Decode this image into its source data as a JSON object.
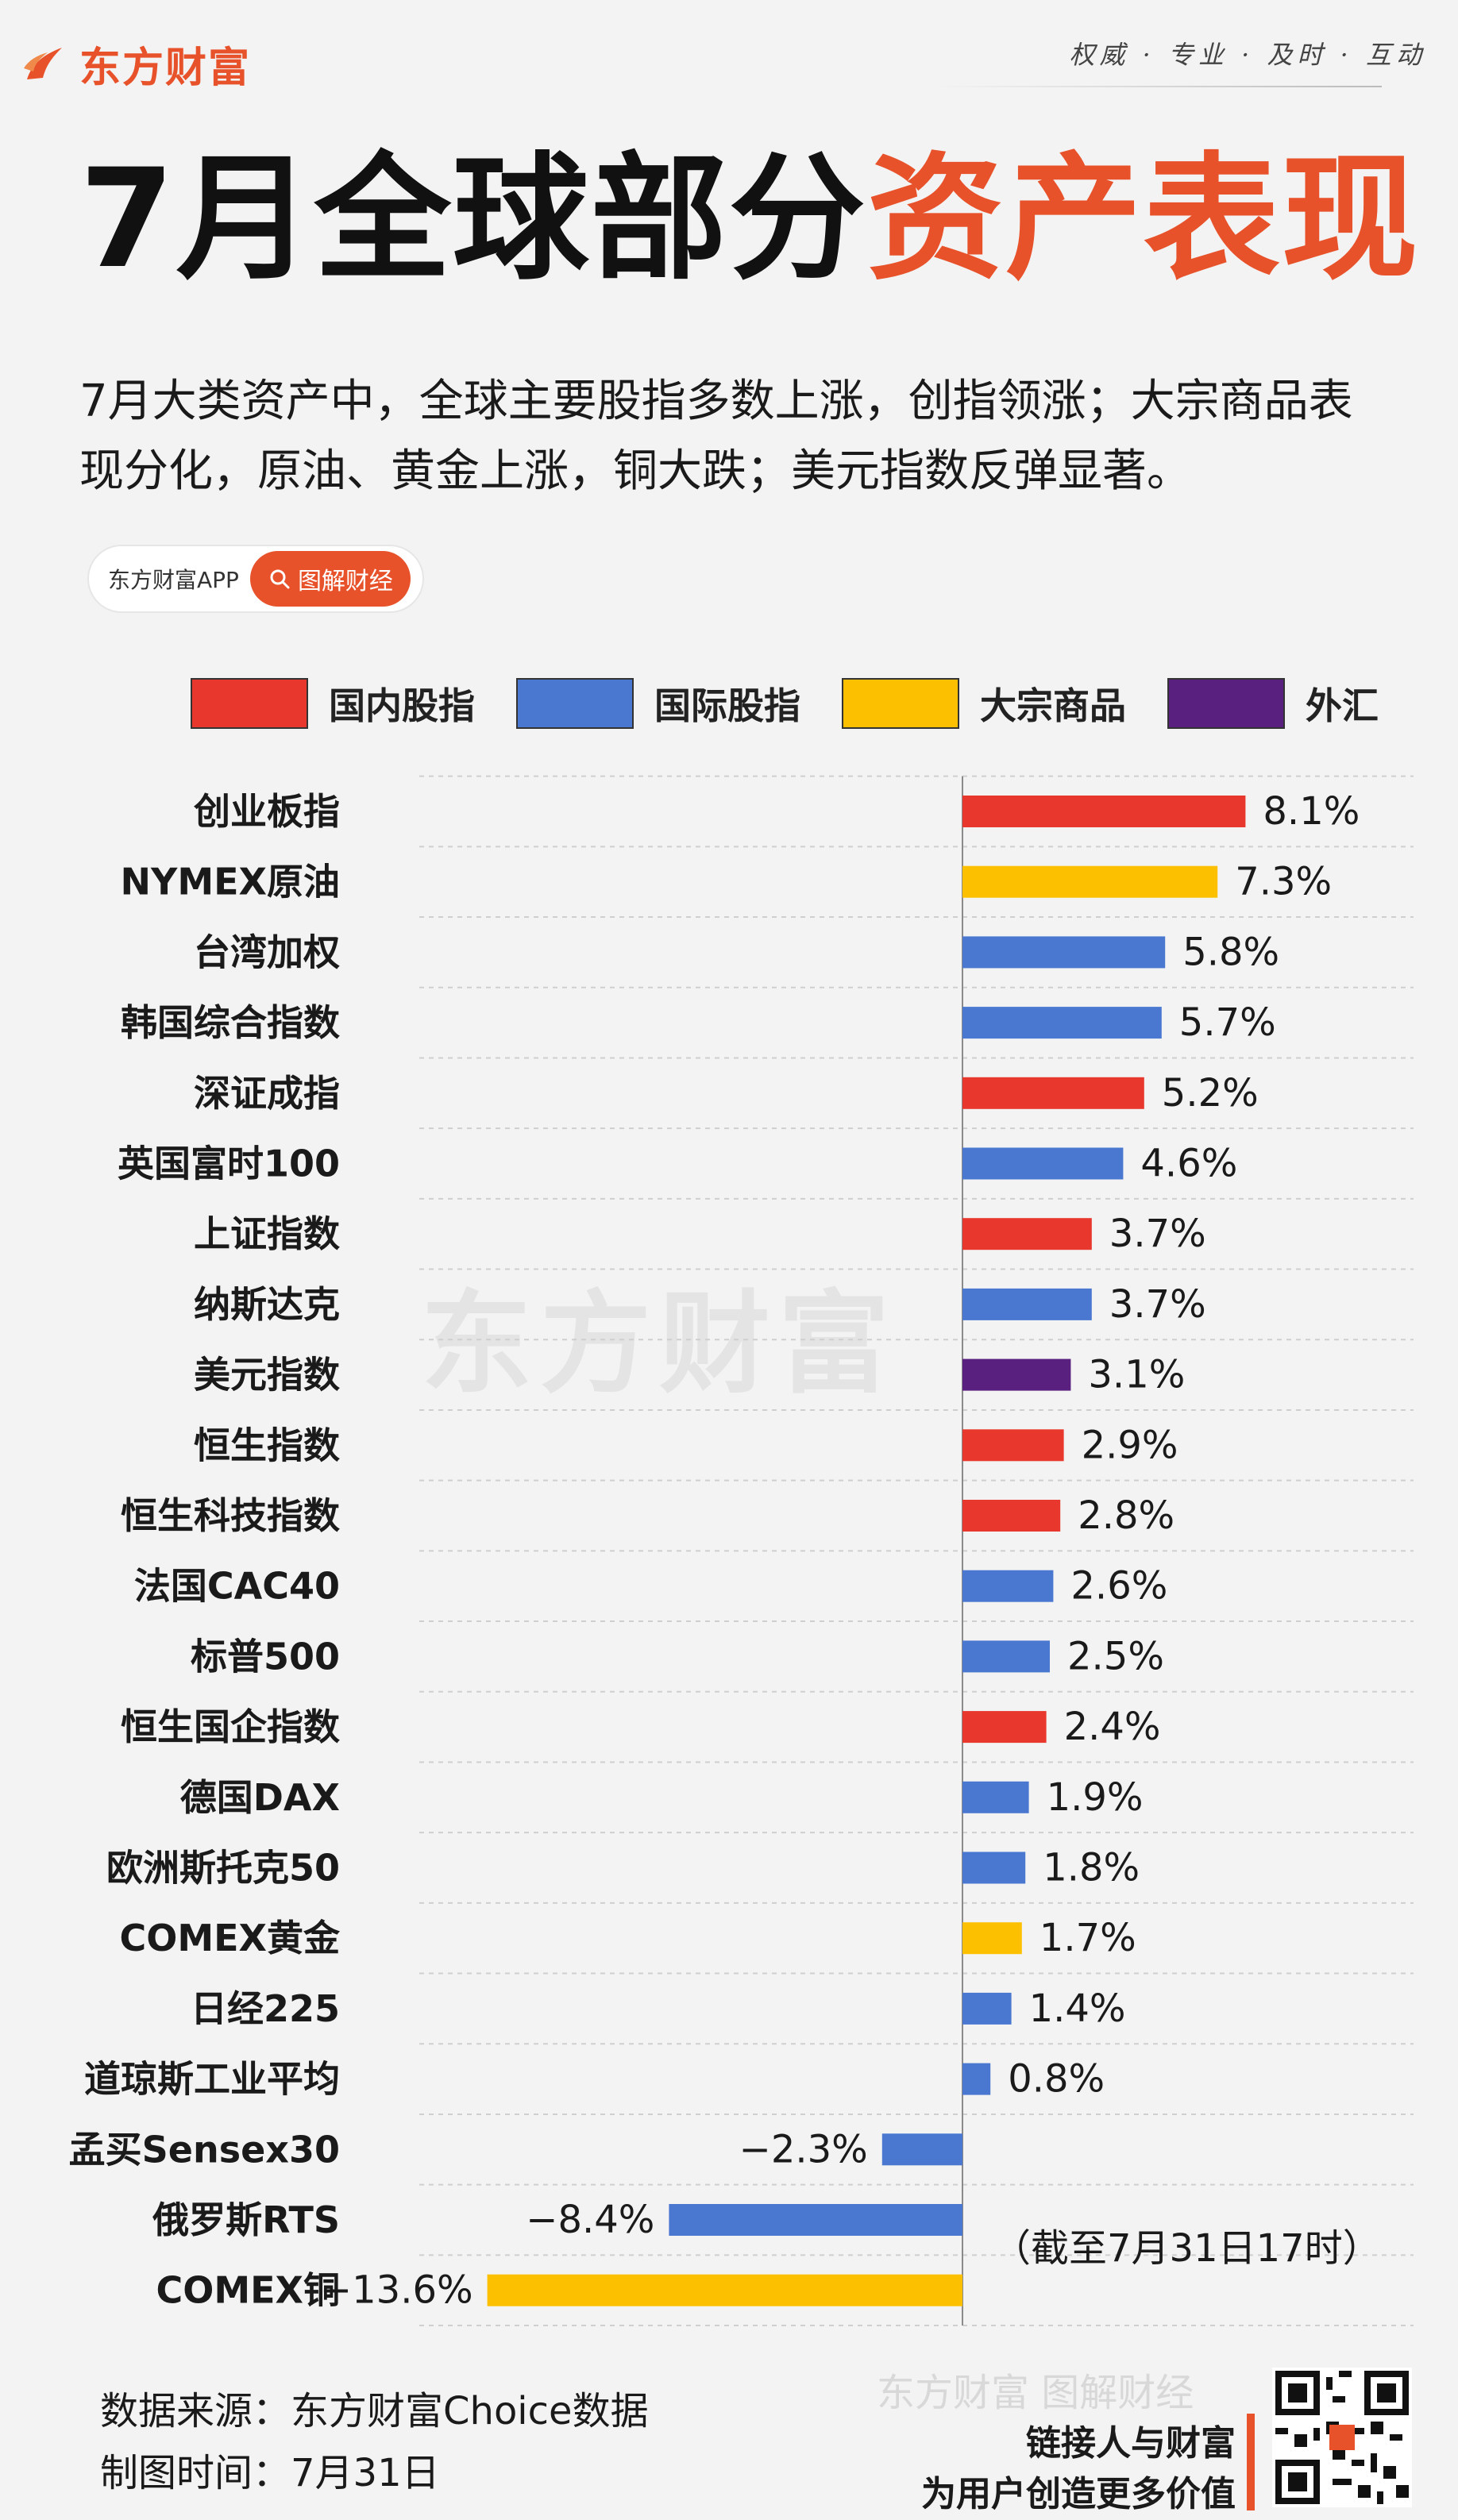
{
  "header": {
    "brand": "东方财富",
    "slogan": "权威 · 专业 · 及时 · 互动",
    "title_part1": "7月全球部分",
    "title_part2": "资产表现",
    "description": "7月大类资产中，全球主要股指多数上涨，创指领涨；大宗商品表现分化，原油、黄金上涨，铜大跌；美元指数反弹显著。",
    "app_name": "东方财富APP",
    "app_button": "图解财经"
  },
  "legend": [
    {
      "label": "国内股指",
      "color": "#e8372c"
    },
    {
      "label": "国际股指",
      "color": "#4a78d1"
    },
    {
      "label": "大宗商品",
      "color": "#fcc000"
    },
    {
      "label": "外汇",
      "color": "#5a2080"
    }
  ],
  "chart_data": {
    "type": "bar",
    "orientation": "horizontal",
    "unit": "%",
    "categories": [
      "创业板指",
      "NYMEX原油",
      "台湾加权",
      "韩国综合指数",
      "深证成指",
      "英国富时100",
      "上证指数",
      "纳斯达克",
      "美元指数",
      "恒生指数",
      "恒生科技指数",
      "法国CAC40",
      "标普500",
      "恒生国企指数",
      "德国DAX",
      "欧洲斯托克50",
      "COMEX黄金",
      "日经225",
      "道琼斯工业平均",
      "孟买Sensex30",
      "俄罗斯RTS",
      "COMEX铜"
    ],
    "values": [
      8.1,
      7.3,
      5.8,
      5.7,
      5.2,
      4.6,
      3.7,
      3.7,
      3.1,
      2.9,
      2.8,
      2.6,
      2.5,
      2.4,
      1.9,
      1.8,
      1.7,
      1.4,
      0.8,
      -2.3,
      -8.4,
      -13.6
    ],
    "labels": [
      "8.1%",
      "7.3%",
      "5.8%",
      "5.7%",
      "5.2%",
      "4.6%",
      "3.7%",
      "3.7%",
      "3.1%",
      "2.9%",
      "2.8%",
      "2.6%",
      "2.5%",
      "2.4%",
      "1.9%",
      "1.8%",
      "1.7%",
      "1.4%",
      "0.8%",
      "−2.3%",
      "−8.4%",
      "−13.6%"
    ],
    "groups": [
      "国内股指",
      "大宗商品",
      "国际股指",
      "国际股指",
      "国内股指",
      "国际股指",
      "国内股指",
      "国际股指",
      "外汇",
      "国内股指",
      "国内股指",
      "国际股指",
      "国际股指",
      "国内股指",
      "国际股指",
      "国际股指",
      "大宗商品",
      "国际股指",
      "国际股指",
      "国际股指",
      "国际股指",
      "大宗商品"
    ],
    "xlim": [
      -13.6,
      8.1
    ],
    "grid": true,
    "legend_position": "top",
    "note": "（截至7月31日17时）"
  },
  "footer": {
    "source": "数据来源：东方财富Choice数据",
    "date": "制图时间：7月31日",
    "brand_small": "东方财富 图解财经",
    "slogan_line1": "链接人与财富",
    "slogan_line2": "为用户创造更多价值"
  }
}
